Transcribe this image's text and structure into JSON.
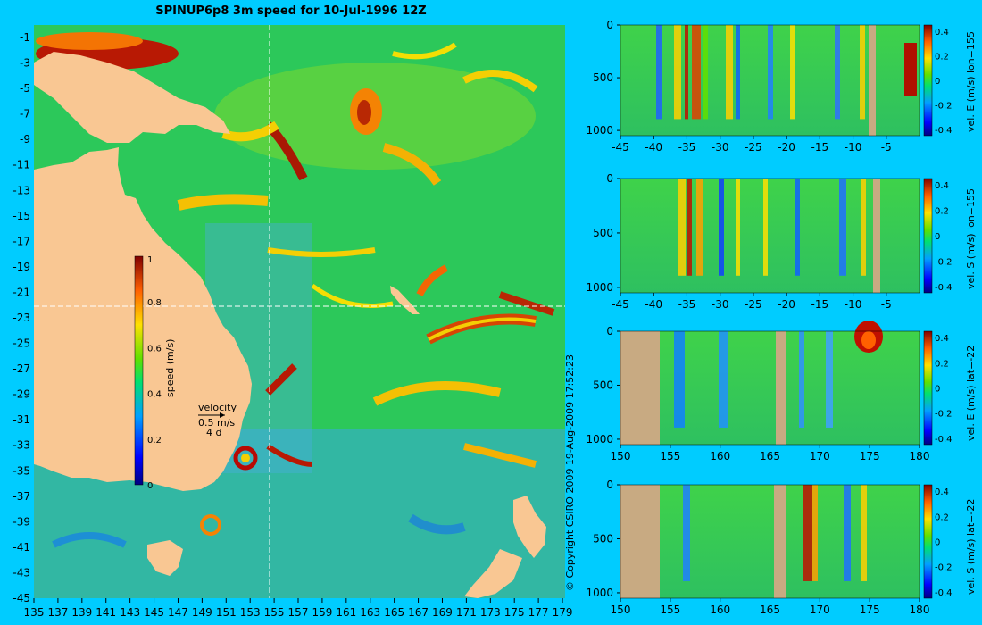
{
  "title": "SPINUP6p8 3m speed for 10-Jul-1996 12Z",
  "copyright": "© Copyright CSIRO 2009   19-Aug-2009 17:52:23",
  "colors": {
    "background": "#00ccff",
    "land": "#f9c793",
    "section_land": "#c8aa82",
    "crosshair": "#ffffff"
  },
  "map": {
    "x_ticks": [
      "135",
      "137",
      "139",
      "141",
      "143",
      "145",
      "147",
      "149",
      "151",
      "153",
      "155",
      "157",
      "159",
      "161",
      "163",
      "165",
      "167",
      "169",
      "171",
      "173",
      "175",
      "177",
      "179"
    ],
    "y_ticks": [
      "-1",
      "-3",
      "-5",
      "-7",
      "-9",
      "-11",
      "-13",
      "-15",
      "-17",
      "-19",
      "-21",
      "-23",
      "-25",
      "-27",
      "-29",
      "-31",
      "-33",
      "-35",
      "-37",
      "-39",
      "-41",
      "-43",
      "-45"
    ],
    "colorbar": {
      "label": "speed (m/s)",
      "ticks": [
        "1",
        "0.8",
        "0.6",
        "0.4",
        "0.2",
        "0"
      ]
    },
    "velocity_key": {
      "title": "velocity",
      "speed": "0.5 m/s",
      "duration": "4 d"
    }
  },
  "chart_data": [
    {
      "type": "heatmap",
      "title": "SPINUP6p8 3m speed for 10-Jul-1996 12Z",
      "xlabel": "",
      "ylabel": "",
      "xlim": [
        135,
        180
      ],
      "ylim": [
        -45,
        0
      ],
      "colorbar_label": "speed (m/s)",
      "colorbar_range": [
        0,
        1
      ],
      "crosshair": {
        "lon": 155,
        "lat": -22
      }
    },
    {
      "type": "heatmap",
      "label": "vel. E (m/s) lon=155",
      "x_ticks": [
        "-45",
        "-40",
        "-35",
        "-30",
        "-25",
        "-20",
        "-15",
        "-10",
        "-5"
      ],
      "y_ticks": [
        "0",
        "500",
        "1000"
      ],
      "colorbar_ticks": [
        "0.4",
        "0.2",
        "0",
        "-0.2",
        "-0.4"
      ],
      "xlim": [
        -45,
        0
      ],
      "ylim": [
        1050,
        0
      ]
    },
    {
      "type": "heatmap",
      "label": "vel. S (m/s) lon=155",
      "x_ticks": [
        "-45",
        "-40",
        "-35",
        "-30",
        "-25",
        "-20",
        "-15",
        "-10",
        "-5"
      ],
      "y_ticks": [
        "0",
        "500",
        "1000"
      ],
      "colorbar_ticks": [
        "0.4",
        "0.2",
        "0",
        "-0.2",
        "-0.4"
      ],
      "xlim": [
        -45,
        0
      ],
      "ylim": [
        1050,
        0
      ]
    },
    {
      "type": "heatmap",
      "label": "vel. E (m/s) lat=-22",
      "x_ticks": [
        "150",
        "155",
        "160",
        "165",
        "170",
        "175",
        "180"
      ],
      "y_ticks": [
        "0",
        "500",
        "1000"
      ],
      "colorbar_ticks": [
        "0.4",
        "0.2",
        "0",
        "-0.2",
        "-0.4"
      ],
      "xlim": [
        150,
        180
      ],
      "ylim": [
        1050,
        0
      ]
    },
    {
      "type": "heatmap",
      "label": "vel. S (m/s) lat=-22",
      "x_ticks": [
        "150",
        "155",
        "160",
        "165",
        "170",
        "175",
        "180"
      ],
      "y_ticks": [
        "0",
        "500",
        "1000"
      ],
      "colorbar_ticks": [
        "0.4",
        "0.2",
        "0",
        "-0.2",
        "-0.4"
      ],
      "xlim": [
        150,
        180
      ],
      "ylim": [
        1050,
        0
      ]
    }
  ]
}
